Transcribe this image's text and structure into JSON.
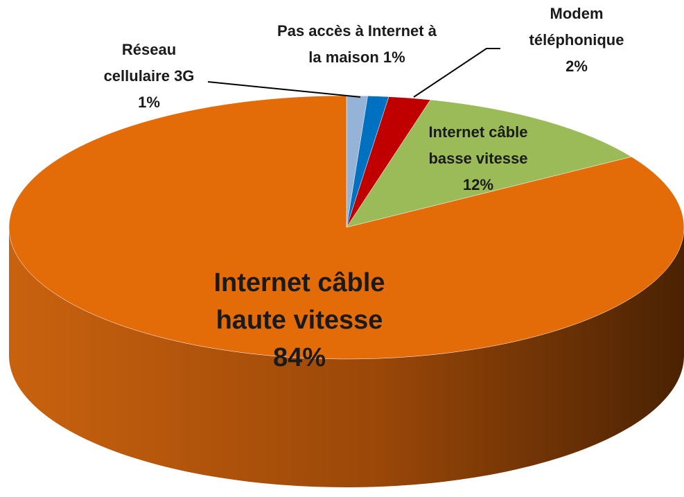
{
  "chart_data": {
    "type": "pie",
    "categories": [
      "Réseau cellulaire 3G",
      "Pas accès à Internet à la maison",
      "Modem téléphonique",
      "Internet câble basse vitesse",
      "Internet câble haute vitesse"
    ],
    "values": [
      1,
      1,
      2,
      12,
      84
    ],
    "value_labels": [
      "1%",
      "1%",
      "2%",
      "12%",
      "84%"
    ],
    "colors": [
      "#95b3d7",
      "#0070c0",
      "#c00000",
      "#9bbb59",
      "#e36c09"
    ]
  }
}
